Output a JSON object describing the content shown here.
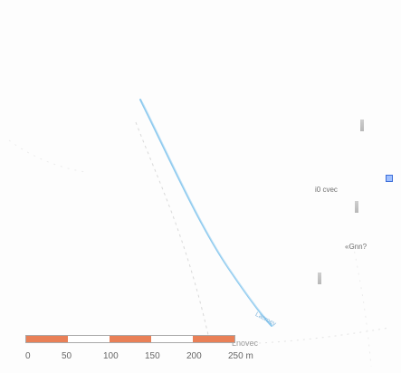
{
  "map": {
    "labels": {
      "village": "Lnovec",
      "stream": "Lacroev",
      "place_1": "i0 cvec",
      "place_2": "«Gnn?"
    },
    "icons": [
      "tower-icon",
      "tower-icon",
      "tower-icon",
      "info-square-icon"
    ],
    "stream_color": "#7ec0ea"
  },
  "scale_bar": {
    "ticks": [
      "0",
      "50",
      "100",
      "150",
      "200",
      "250 m"
    ],
    "unit": "m",
    "colors": [
      "#e98057",
      "#ffffff",
      "#e98057",
      "#ffffff",
      "#e98057"
    ]
  }
}
